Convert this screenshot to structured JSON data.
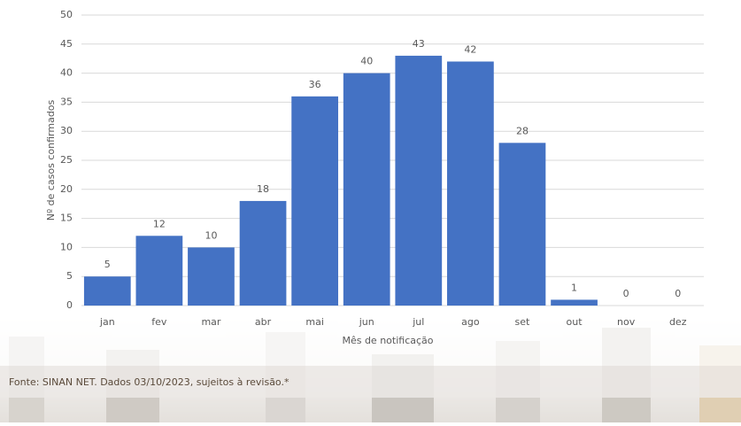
{
  "chart_data": {
    "type": "bar",
    "categories": [
      "jan",
      "fev",
      "mar",
      "abr",
      "mai",
      "jun",
      "jul",
      "ago",
      "set",
      "out",
      "nov",
      "dez"
    ],
    "values": [
      5,
      12,
      10,
      18,
      36,
      40,
      43,
      42,
      28,
      1,
      0,
      0
    ],
    "color": "#4472c4",
    "ylim": [
      0,
      50
    ],
    "yticks": [
      0,
      5,
      10,
      15,
      20,
      25,
      30,
      35,
      40,
      45,
      50
    ],
    "grid": true,
    "y_label": "Nº de casos confirmados",
    "x_label": "Mês de notificação",
    "source": "Fonte: SINAN NET. Dados 03/10/2023, sujeitos à revisão.*"
  }
}
